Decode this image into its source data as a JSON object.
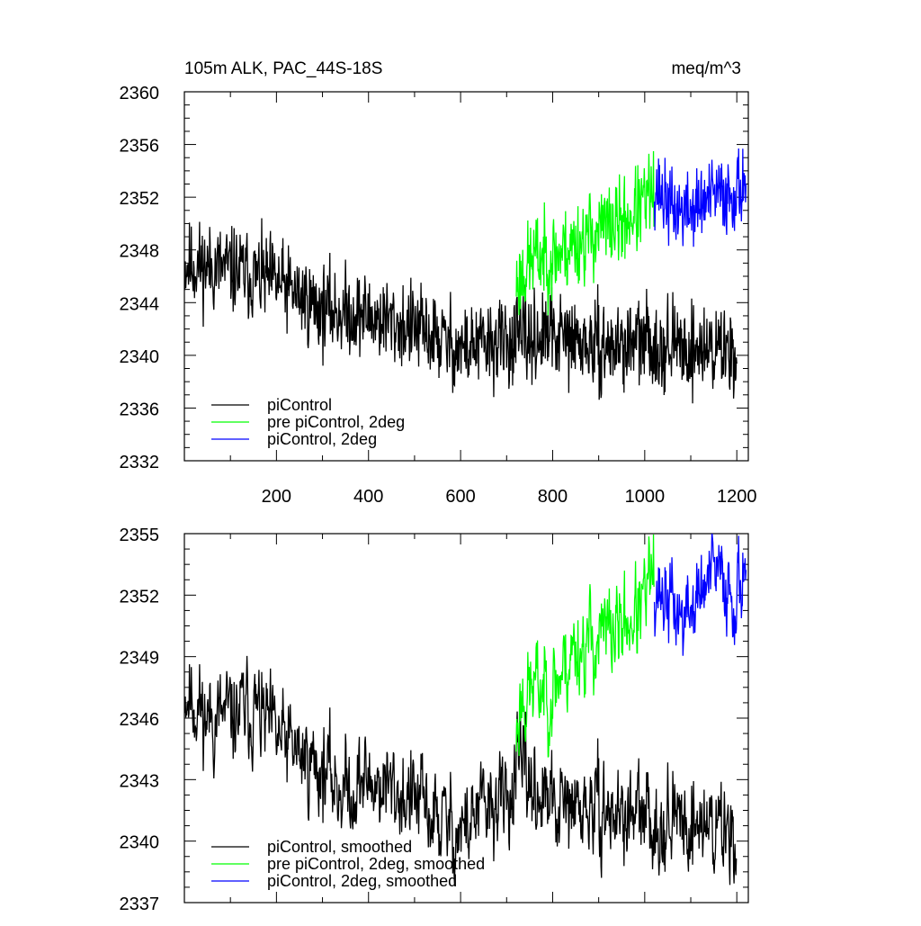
{
  "chart_data": [
    {
      "type": "line",
      "title": "105m ALK, PAC_44S-18S",
      "units": "meq/m^3",
      "xlabel": "",
      "ylabel": "",
      "xlim": [
        0,
        1225
      ],
      "ylim": [
        2332,
        2360
      ],
      "xticks": [
        200,
        400,
        600,
        800,
        1000,
        1200
      ],
      "yticks": [
        2332,
        2336,
        2340,
        2344,
        2348,
        2352,
        2356,
        2360
      ],
      "legend_position": "bottom-left",
      "series": [
        {
          "name": "piControl",
          "color": "#000000",
          "x": [
            1,
            1200
          ],
          "seed": 11,
          "noise": 1.9,
          "smooth": 0.15,
          "anchors": [
            [
              1,
              2347
            ],
            [
              100,
              2346.5
            ],
            [
              200,
              2345.5
            ],
            [
              300,
              2343.5
            ],
            [
              400,
              2343
            ],
            [
              500,
              2342
            ],
            [
              600,
              2340.5
            ],
            [
              700,
              2341
            ],
            [
              800,
              2341.5
            ],
            [
              900,
              2340.5
            ],
            [
              1000,
              2341
            ],
            [
              1100,
              2340.5
            ],
            [
              1200,
              2340.5
            ]
          ]
        },
        {
          "name": "pre piControl, 2deg",
          "color": "#00ff00",
          "x": [
            721,
            1020
          ],
          "seed": 23,
          "noise": 1.9,
          "smooth": 0.15,
          "anchors": [
            [
              721,
              2345.5
            ],
            [
              760,
              2347.5
            ],
            [
              800,
              2347.5
            ],
            [
              850,
              2348.5
            ],
            [
              900,
              2349.5
            ],
            [
              950,
              2350
            ],
            [
              1000,
              2351.5
            ],
            [
              1020,
              2352.5
            ]
          ]
        },
        {
          "name": "piControl, 2deg",
          "color": "#0000ff",
          "x": [
            1021,
            1220
          ],
          "seed": 37,
          "noise": 1.7,
          "smooth": 0.15,
          "anchors": [
            [
              1021,
              2353
            ],
            [
              1060,
              2351
            ],
            [
              1100,
              2351
            ],
            [
              1150,
              2352
            ],
            [
              1200,
              2352.5
            ],
            [
              1220,
              2353.5
            ]
          ]
        }
      ]
    },
    {
      "type": "line",
      "title": "",
      "xlabel": "",
      "ylabel": "",
      "xlim": [
        0,
        1225
      ],
      "ylim": [
        2337,
        2355
      ],
      "xticks": [
        200,
        400,
        600,
        800,
        1000,
        1200
      ],
      "yticks": [
        2337,
        2340,
        2343,
        2346,
        2349,
        2352,
        2355
      ],
      "legend_position": "bottom-left",
      "series": [
        {
          "name": "piControl, smoothed",
          "color": "#000000",
          "x": [
            1,
            1200
          ],
          "seed": 11,
          "noise": 2.2,
          "smooth": 0.55,
          "anchors": [
            [
              1,
              2347.5
            ],
            [
              50,
              2346
            ],
            [
              100,
              2346
            ],
            [
              150,
              2346.5
            ],
            [
              200,
              2345
            ],
            [
              300,
              2343.5
            ],
            [
              350,
              2342.5
            ],
            [
              400,
              2343
            ],
            [
              500,
              2342
            ],
            [
              550,
              2341
            ],
            [
              600,
              2340.5
            ],
            [
              650,
              2341.5
            ],
            [
              700,
              2342
            ],
            [
              728,
              2343.5
            ],
            [
              800,
              2341.5
            ],
            [
              900,
              2341.5
            ],
            [
              1000,
              2341
            ],
            [
              1100,
              2341
            ],
            [
              1200,
              2340.5
            ]
          ]
        },
        {
          "name": "pre piControl, 2deg, smoothed",
          "color": "#00ff00",
          "x": [
            721,
            1020
          ],
          "seed": 23,
          "noise": 2.2,
          "smooth": 0.55,
          "anchors": [
            [
              721,
              2345
            ],
            [
              730,
              2347
            ],
            [
              760,
              2347.5
            ],
            [
              800,
              2347.5
            ],
            [
              850,
              2349.5
            ],
            [
              900,
              2349.8
            ],
            [
              950,
              2350.5
            ],
            [
              1000,
              2351.5
            ],
            [
              1020,
              2353.5
            ]
          ]
        },
        {
          "name": "piControl, 2deg, smoothed",
          "color": "#0000ff",
          "x": [
            1021,
            1220
          ],
          "seed": 37,
          "noise": 2.0,
          "smooth": 0.55,
          "anchors": [
            [
              1021,
              2352.5
            ],
            [
              1060,
              2351.5
            ],
            [
              1085,
              2350.8
            ],
            [
              1120,
              2352
            ],
            [
              1150,
              2353
            ],
            [
              1180,
              2352.5
            ],
            [
              1200,
              2352
            ],
            [
              1220,
              2354
            ]
          ]
        }
      ]
    }
  ]
}
